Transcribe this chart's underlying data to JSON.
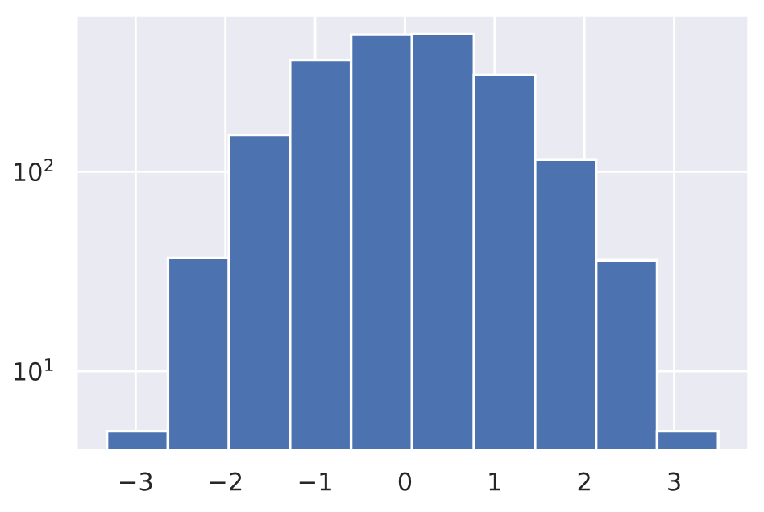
{
  "chart_data": {
    "type": "histogram",
    "bins": [
      -3.32,
      -2.64,
      -1.96,
      -1.28,
      -0.6,
      0.08,
      0.77,
      1.45,
      2.13,
      2.81,
      3.49
    ],
    "values": [
      5,
      37,
      153,
      363,
      486,
      490,
      305,
      115,
      36,
      5
    ],
    "color": "#4c72b0",
    "log": "y",
    "xlim": [
      -3.66,
      3.83
    ],
    "ylim": [
      4,
      608
    ],
    "xticks": [
      {
        "value": -3,
        "label": "−3"
      },
      {
        "value": -2,
        "label": "−2"
      },
      {
        "value": -1,
        "label": "−1"
      },
      0,
      1,
      2,
      3
    ],
    "yticks": [
      {
        "value": 10,
        "label": "10$^{1}$"
      },
      {
        "value": 100,
        "label": "10$^{2}$"
      }
    ],
    "grid": true
  }
}
